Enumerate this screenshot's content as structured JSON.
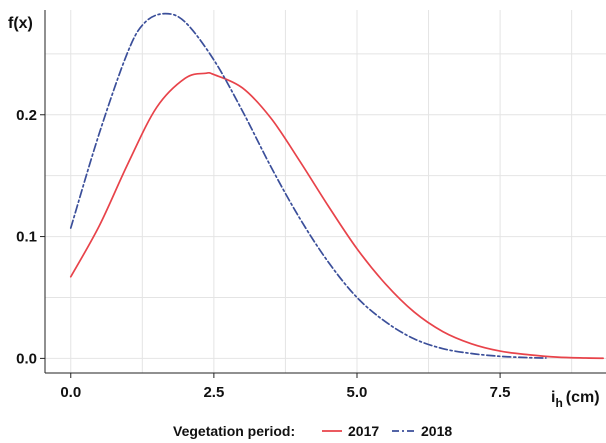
{
  "chart_data": {
    "type": "line",
    "ylabel": "f(x)",
    "xlabel": "i",
    "xlabel_sub": "h",
    "xlabel_unit": "(cm)",
    "xlim": [
      -0.45,
      9.35
    ],
    "ylim": [
      -0.012,
      0.286
    ],
    "x_ticks": [
      0.0,
      2.5,
      5.0,
      7.5
    ],
    "x_tick_labels": [
      "0.0",
      "2.5",
      "5.0",
      "7.5"
    ],
    "y_ticks": [
      0.0,
      0.1,
      0.2
    ],
    "y_tick_labels": [
      "0.0",
      "0.1",
      "0.2"
    ],
    "grid": true,
    "legend_position": "bottom",
    "legend_title": "Vegetation period:",
    "series": [
      {
        "name": "2017",
        "color": "#e8434a",
        "dash": "solid",
        "x": [
          0.0,
          0.5,
          1.0,
          1.5,
          2.0,
          2.35,
          2.5,
          3.0,
          3.5,
          4.0,
          4.5,
          5.0,
          5.5,
          6.0,
          6.5,
          7.0,
          7.5,
          8.0,
          8.5,
          9.0,
          9.3
        ],
        "y": [
          0.067,
          0.109,
          0.16,
          0.206,
          0.23,
          0.234,
          0.233,
          0.222,
          0.197,
          0.162,
          0.125,
          0.09,
          0.061,
          0.038,
          0.022,
          0.012,
          0.006,
          0.003,
          0.001,
          0.0003,
          0.0001
        ]
      },
      {
        "name": "2018",
        "color": "#3b4f9a",
        "dash": "dashdot",
        "x": [
          0.0,
          0.5,
          1.0,
          1.3,
          1.65,
          2.0,
          2.5,
          3.0,
          3.5,
          4.0,
          4.5,
          5.0,
          5.5,
          6.0,
          6.5,
          7.0,
          7.5,
          8.0,
          8.3
        ],
        "y": [
          0.107,
          0.185,
          0.252,
          0.276,
          0.283,
          0.276,
          0.245,
          0.203,
          0.157,
          0.115,
          0.079,
          0.05,
          0.03,
          0.016,
          0.008,
          0.004,
          0.0017,
          0.0006,
          0.0003
        ]
      }
    ]
  }
}
